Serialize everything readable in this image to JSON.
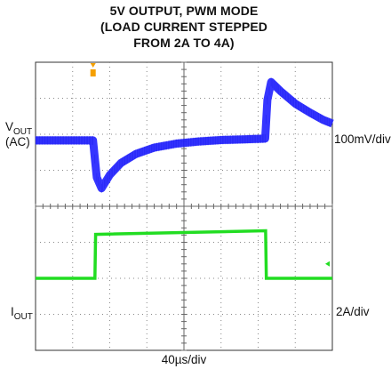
{
  "chart_data": {
    "type": "line",
    "title": [
      "5V OUTPUT, PWM MODE",
      "(LOAD CURRENT STEPPED",
      "FROM 2A TO 4A)"
    ],
    "xlabel": "40µs/div",
    "grid": true,
    "divisions": {
      "x": 8,
      "y": 8
    },
    "series": [
      {
        "name": "VOUT",
        "label_main": "V",
        "label_sub": "OUT",
        "label_extra": "(AC)",
        "scale": "100mV/div",
        "color": "#2b2bff",
        "trace_style": "thick-noisy",
        "x": [
          0.0,
          1.55,
          1.65,
          1.78,
          2.0,
          2.3,
          2.7,
          3.2,
          3.8,
          4.4,
          5.0,
          5.6,
          6.19,
          6.25,
          6.35,
          6.6,
          7.0,
          7.4,
          7.75,
          8.0
        ],
        "y": [
          1.83,
          1.83,
          0.8,
          0.5,
          0.87,
          1.2,
          1.45,
          1.63,
          1.74,
          1.8,
          1.84,
          1.86,
          1.88,
          2.95,
          3.45,
          3.2,
          2.85,
          2.6,
          2.4,
          2.3
        ]
      },
      {
        "name": "IOUT",
        "label_main": "I",
        "label_sub": "OUT",
        "scale": "2A/div",
        "color": "#22dd22",
        "trace_style": "thin",
        "x": [
          0.0,
          1.6,
          1.62,
          6.2,
          6.22,
          8.0
        ],
        "y": [
          -2.0,
          -2.0,
          -0.78,
          -0.68,
          -2.0,
          -2.0
        ]
      }
    ],
    "markers": {
      "trigger_color": "#f5a000",
      "ground_marker_color": "#22dd22"
    }
  }
}
